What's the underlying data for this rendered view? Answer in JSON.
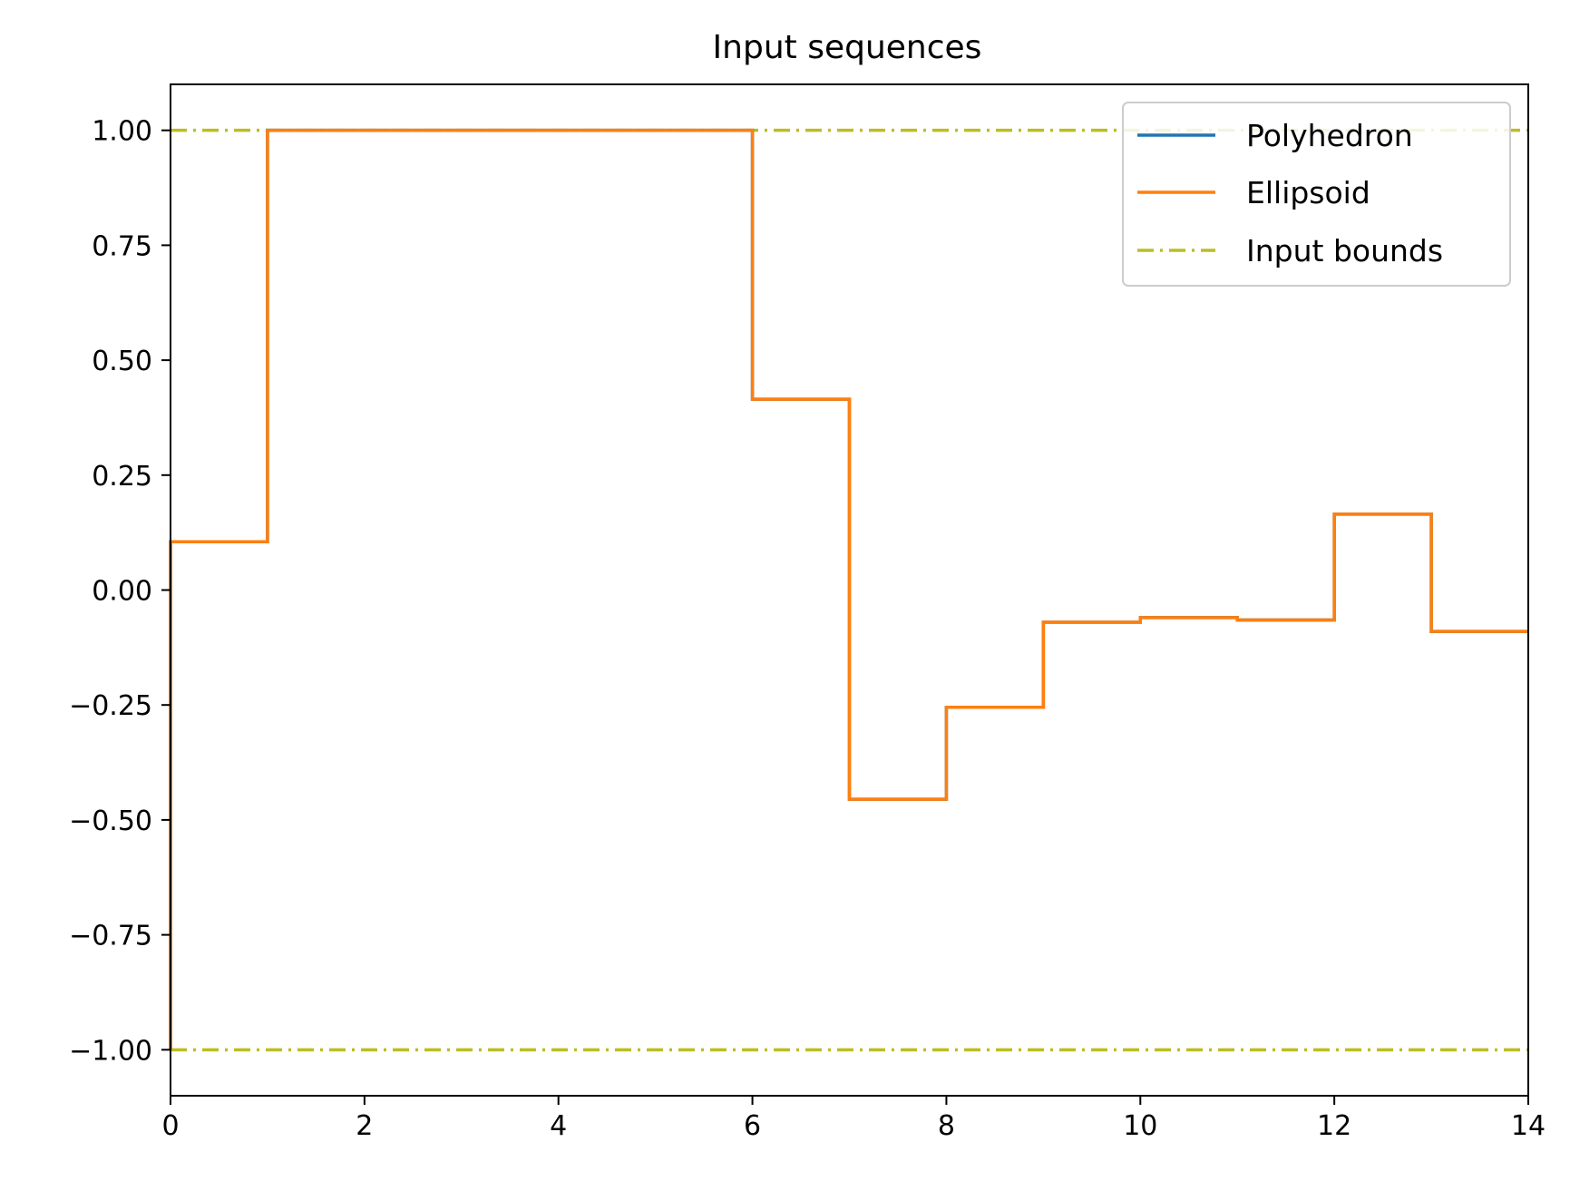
{
  "chart_data": {
    "type": "line",
    "title": "Input sequences",
    "xlabel": "",
    "ylabel": "",
    "xlim": [
      0,
      14
    ],
    "ylim": [
      -1.1,
      1.1
    ],
    "xticks": [
      0,
      2,
      4,
      6,
      8,
      10,
      12,
      14
    ],
    "xtick_labels": [
      "0",
      "2",
      "4",
      "6",
      "8",
      "10",
      "12",
      "14"
    ],
    "yticks": [
      1.0,
      0.75,
      0.5,
      0.25,
      0.0,
      -0.25,
      -0.5,
      -0.75,
      -1.0
    ],
    "ytick_labels": [
      "1.00",
      "0.75",
      "0.50",
      "0.25",
      "0.00",
      "−0.25",
      "−0.50",
      "−0.75",
      "−1.00"
    ],
    "grid": false,
    "legend": "top-right",
    "series": [
      {
        "name": "Polyhedron",
        "style": "steps-post",
        "color": "#1f77b4",
        "x": [
          0,
          1,
          2,
          3,
          4,
          5,
          6,
          7,
          8,
          9,
          10,
          11,
          12,
          13
        ],
        "y": [
          0.105,
          1.0,
          1.0,
          1.0,
          1.0,
          1.0,
          0.415,
          -0.455,
          -0.255,
          -0.07,
          -0.06,
          -0.065,
          0.165,
          -0.09
        ]
      },
      {
        "name": "Ellipsoid",
        "style": "steps-post",
        "color": "#ff7f0e",
        "x": [
          0,
          1,
          2,
          3,
          4,
          5,
          6,
          7,
          8,
          9,
          10,
          11,
          12,
          13
        ],
        "y": [
          0.105,
          1.0,
          1.0,
          1.0,
          1.0,
          1.0,
          0.415,
          -0.455,
          -0.255,
          -0.07,
          -0.06,
          -0.065,
          0.165,
          -0.09
        ]
      },
      {
        "name": "Input bounds",
        "style": "dashdot",
        "color": "#bcbd22",
        "hlines": [
          1.0,
          -1.0
        ]
      }
    ]
  }
}
